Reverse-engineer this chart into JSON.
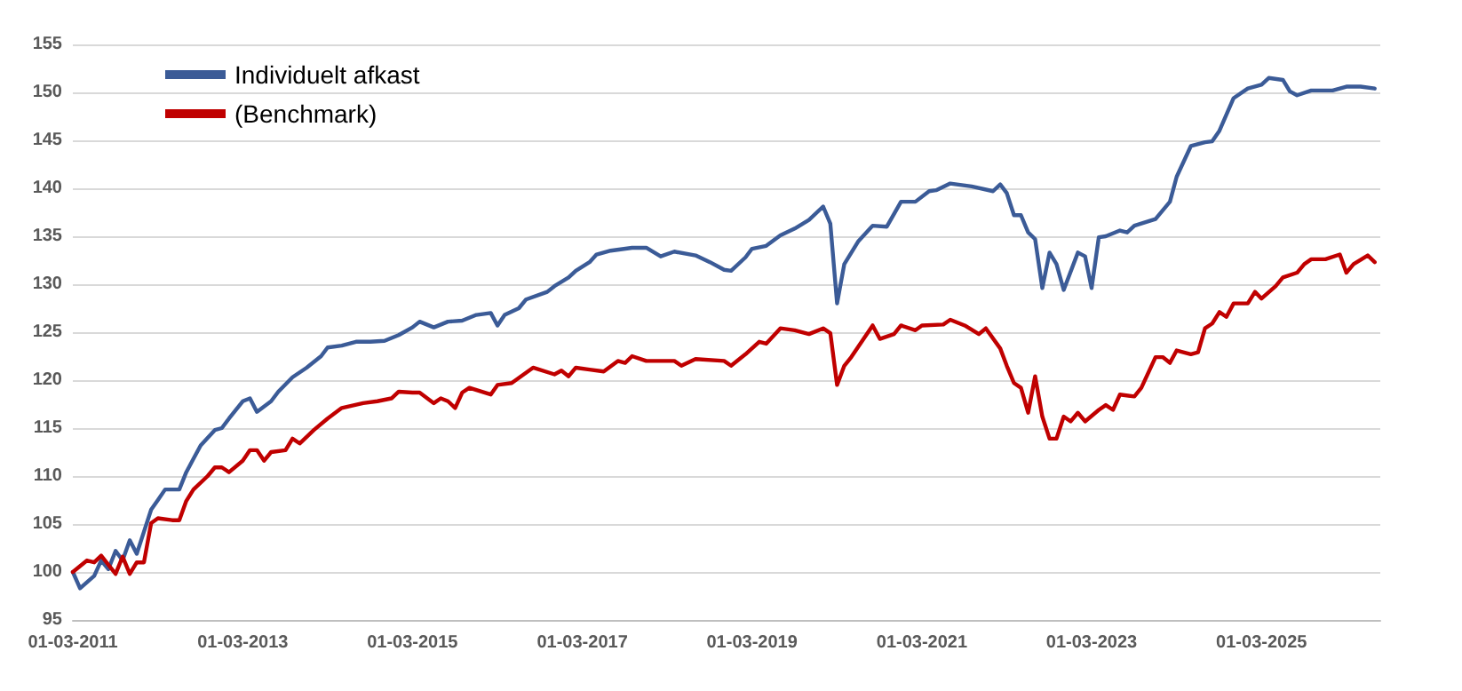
{
  "chart_data": {
    "type": "line",
    "legend": "top left",
    "grid": "y",
    "line_style": "solid",
    "marker": "none",
    "xlim": [
      "2011-03-01",
      "2026-07-25"
    ],
    "xticks": [
      {
        "value": "2011-03-01",
        "label": "01-03-2011"
      },
      {
        "value": "2013-03-01",
        "label": "01-03-2013"
      },
      {
        "value": "2015-03-01",
        "label": "01-03-2015"
      },
      {
        "value": "2017-03-01",
        "label": "01-03-2017"
      },
      {
        "value": "2019-03-01",
        "label": "01-03-2019"
      },
      {
        "value": "2021-03-01",
        "label": "01-03-2021"
      },
      {
        "value": "2023-03-01",
        "label": "01-03-2023"
      },
      {
        "value": "2025-03-01",
        "label": "01-03-2025"
      }
    ],
    "ylim": [
      95,
      155
    ],
    "yticks": [
      95,
      100,
      105,
      110,
      115,
      120,
      125,
      130,
      135,
      140,
      145,
      150,
      155
    ],
    "series": [
      {
        "name": "Individuelt afkast",
        "color": "#3b5b97",
        "x": [
          "2011-03",
          "2011-04",
          "2011-06",
          "2011-07",
          "2011-08",
          "2011-09",
          "2011-10",
          "2011-11",
          "2011-12",
          "2012-01",
          "2012-02",
          "2012-03",
          "2012-04",
          "2012-05",
          "2012-06",
          "2012-07",
          "2012-08",
          "2012-09",
          "2012-11",
          "2012-12",
          "2013-01",
          "2013-03",
          "2013-04",
          "2013-05",
          "2013-07",
          "2013-08",
          "2013-10",
          "2013-12",
          "2014-02",
          "2014-03",
          "2014-05",
          "2014-07",
          "2014-09",
          "2014-11",
          "2015-01",
          "2015-03",
          "2015-04",
          "2015-06",
          "2015-08",
          "2015-10",
          "2015-12",
          "2016-02",
          "2016-03",
          "2016-04",
          "2016-06",
          "2016-07",
          "2016-10",
          "2016-11",
          "2017-01",
          "2017-02",
          "2017-04",
          "2017-05",
          "2017-07",
          "2017-10",
          "2017-12",
          "2018-02",
          "2018-04",
          "2018-07",
          "2018-09",
          "2018-11",
          "2018-12",
          "2019-02",
          "2019-03",
          "2019-05",
          "2019-07",
          "2019-09",
          "2019-11",
          "2020-01",
          "2020-02",
          "2020-03",
          "2020-04",
          "2020-06",
          "2020-08",
          "2020-10",
          "2020-12",
          "2021-02",
          "2021-04",
          "2021-05",
          "2021-07",
          "2021-10",
          "2022-01",
          "2022-02",
          "2022-03",
          "2022-04",
          "2022-05",
          "2022-06",
          "2022-07",
          "2022-08",
          "2022-09",
          "2022-10",
          "2022-11",
          "2023-01",
          "2023-02",
          "2023-03",
          "2023-04",
          "2023-05",
          "2023-07",
          "2023-08",
          "2023-09",
          "2023-12",
          "2024-02",
          "2024-03",
          "2024-05",
          "2024-07",
          "2024-08",
          "2024-09",
          "2024-11",
          "2025-01",
          "2025-03",
          "2025-04",
          "2025-06",
          "2025-07",
          "2025-08",
          "2025-10",
          "2026-01",
          "2026-03",
          "2026-05",
          "2026-07"
        ],
        "values": [
          100,
          98.3,
          99.6,
          101.2,
          100.3,
          102.2,
          101.2,
          103.3,
          101.9,
          104.2,
          106.5,
          107.5,
          108.6,
          108.6,
          108.6,
          110.4,
          111.8,
          113.2,
          114.8,
          115,
          116,
          117.8,
          118.1,
          116.7,
          117.8,
          118.8,
          120.3,
          121.3,
          122.5,
          123.4,
          123.6,
          124,
          124,
          124.1,
          124.7,
          125.5,
          126.1,
          125.5,
          126.1,
          126.2,
          126.8,
          127,
          125.7,
          126.8,
          127.5,
          128.4,
          129.2,
          129.8,
          130.7,
          131.4,
          132.3,
          133.1,
          133.5,
          133.8,
          133.8,
          132.9,
          133.4,
          133,
          132.3,
          131.5,
          131.4,
          132.8,
          133.7,
          134,
          135.1,
          135.8,
          136.7,
          138.1,
          136.3,
          128,
          132.1,
          134.5,
          136.1,
          136,
          138.6,
          138.6,
          139.7,
          139.8,
          140.5,
          140.2,
          139.7,
          140.4,
          139.5,
          137.2,
          137.2,
          135.4,
          134.7,
          129.6,
          133.3,
          132.1,
          129.4,
          133.3,
          132.9,
          129.6,
          134.9,
          135,
          135.6,
          135.4,
          136.1,
          136.8,
          138.6,
          141.2,
          144.4,
          144.8,
          144.9,
          146,
          149.4,
          150.4,
          150.8,
          151.5,
          151.3,
          150.1,
          149.7,
          150.2,
          150.2,
          150.6,
          150.6,
          150.4
        ]
      },
      {
        "name": "(Benchmark)",
        "color": "#c00000",
        "x": [
          "2011-03",
          "2011-05",
          "2011-06",
          "2011-07",
          "2011-09",
          "2011-10",
          "2011-11",
          "2011-12",
          "2012-01",
          "2012-02",
          "2012-03",
          "2012-05",
          "2012-06",
          "2012-07",
          "2012-08",
          "2012-10",
          "2012-11",
          "2012-12",
          "2013-01",
          "2013-03",
          "2013-04",
          "2013-05",
          "2013-06",
          "2013-07",
          "2013-09",
          "2013-10",
          "2013-11",
          "2014-01",
          "2014-03",
          "2014-05",
          "2014-08",
          "2014-10",
          "2014-12",
          "2015-01",
          "2015-03",
          "2015-04",
          "2015-06",
          "2015-07",
          "2015-08",
          "2015-09",
          "2015-10",
          "2015-11",
          "2016-02",
          "2016-03",
          "2016-05",
          "2016-08",
          "2016-11",
          "2016-12",
          "2017-01",
          "2017-02",
          "2017-04",
          "2017-06",
          "2017-08",
          "2017-09",
          "2017-10",
          "2017-12",
          "2018-04",
          "2018-05",
          "2018-07",
          "2018-11",
          "2018-12",
          "2019-02",
          "2019-04",
          "2019-05",
          "2019-07",
          "2019-09",
          "2019-11",
          "2020-01",
          "2020-02",
          "2020-03",
          "2020-04",
          "2020-05",
          "2020-08",
          "2020-09",
          "2020-11",
          "2020-12",
          "2021-02",
          "2021-03",
          "2021-06",
          "2021-07",
          "2021-09",
          "2021-11",
          "2021-12",
          "2022-02",
          "2022-03",
          "2022-04",
          "2022-05",
          "2022-06",
          "2022-07",
          "2022-08",
          "2022-09",
          "2022-10",
          "2022-11",
          "2022-12",
          "2023-01",
          "2023-02",
          "2023-04",
          "2023-05",
          "2023-06",
          "2023-07",
          "2023-09",
          "2023-10",
          "2023-12",
          "2024-01",
          "2024-02",
          "2024-03",
          "2024-05",
          "2024-06",
          "2024-07",
          "2024-08",
          "2024-09",
          "2024-10",
          "2024-11",
          "2025-01",
          "2025-02",
          "2025-03",
          "2025-05",
          "2025-06",
          "2025-08",
          "2025-09",
          "2025-10",
          "2025-12",
          "2026-02",
          "2026-03",
          "2026-04",
          "2026-06",
          "2026-07"
        ],
        "values": [
          100,
          101.2,
          101,
          101.7,
          99.8,
          101.6,
          99.8,
          101,
          101,
          105.1,
          105.6,
          105.4,
          105.4,
          107.4,
          108.6,
          110,
          110.9,
          110.9,
          110.4,
          111.6,
          112.7,
          112.7,
          111.6,
          112.5,
          112.7,
          113.9,
          113.4,
          114.8,
          116,
          117.1,
          117.6,
          117.8,
          118.1,
          118.8,
          118.7,
          118.7,
          117.6,
          118.1,
          117.8,
          117.1,
          118.7,
          119.2,
          118.5,
          119.5,
          119.7,
          121.3,
          120.6,
          121,
          120.4,
          121.3,
          121.1,
          120.9,
          122,
          121.8,
          122.5,
          122,
          122,
          121.5,
          122.2,
          122,
          121.5,
          122.7,
          124,
          123.8,
          125.4,
          125.2,
          124.8,
          125.4,
          124.9,
          119.5,
          121.5,
          122.4,
          125.7,
          124.3,
          124.8,
          125.7,
          125.2,
          125.7,
          125.8,
          126.3,
          125.7,
          124.8,
          125.4,
          123.3,
          121.5,
          119.7,
          119.2,
          116.6,
          120.4,
          116.2,
          113.9,
          113.9,
          116.2,
          115.7,
          116.6,
          115.7,
          116.9,
          117.4,
          116.9,
          118.5,
          118.3,
          119.2,
          122.4,
          122.4,
          121.8,
          123.1,
          122.7,
          122.9,
          125.4,
          125.9,
          127.1,
          126.6,
          128,
          128,
          129.2,
          128.5,
          129.8,
          130.7,
          131.2,
          132.1,
          132.6,
          132.6,
          133.1,
          131.2,
          132.1,
          133,
          132.3
        ]
      }
    ]
  }
}
